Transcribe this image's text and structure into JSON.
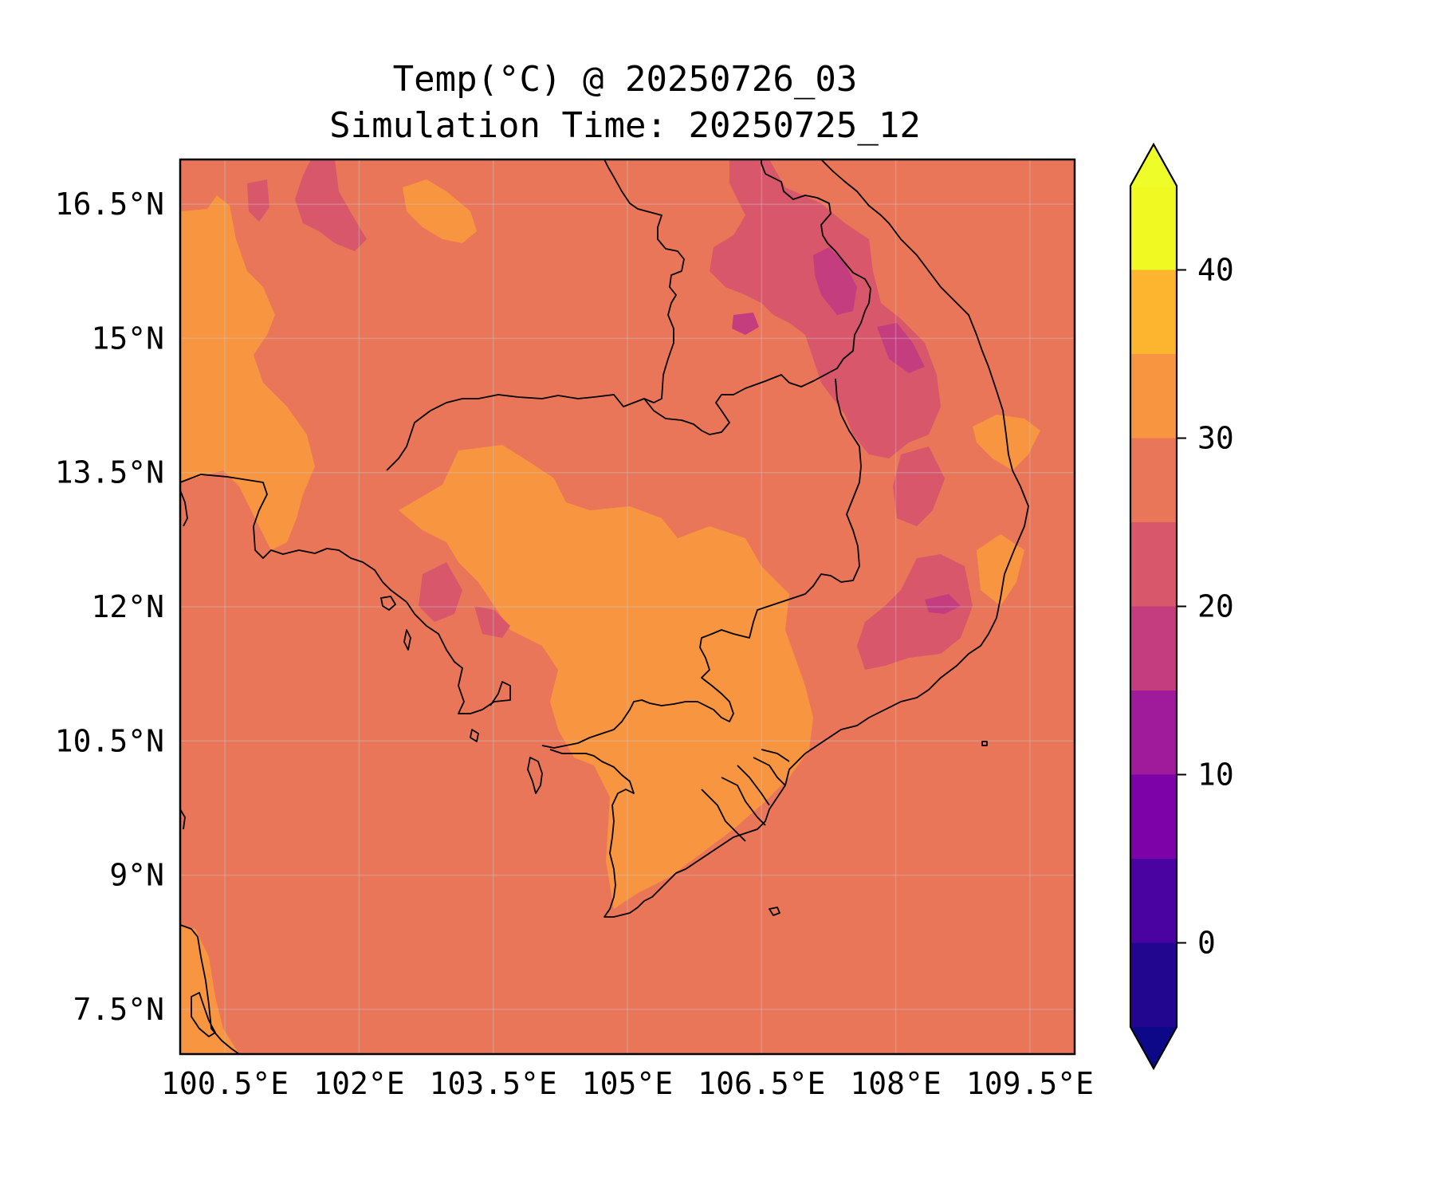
{
  "title": {
    "line1": "Temp(°C) @ 20250726_03",
    "line2": "Simulation Time: 20250725_12"
  },
  "map": {
    "lon_range": [
      100.0,
      110.0
    ],
    "lat_range": [
      7.0,
      17.0
    ],
    "x_ticks": [
      {
        "value": 100.5,
        "label": "100.5°E"
      },
      {
        "value": 102.0,
        "label": "102°E"
      },
      {
        "value": 103.5,
        "label": "103.5°E"
      },
      {
        "value": 105.0,
        "label": "105°E"
      },
      {
        "value": 106.5,
        "label": "106.5°E"
      },
      {
        "value": 108.0,
        "label": "108°E"
      },
      {
        "value": 109.5,
        "label": "109.5°E"
      }
    ],
    "y_ticks": [
      {
        "value": 16.5,
        "label": "16.5°N"
      },
      {
        "value": 15.0,
        "label": "15°N"
      },
      {
        "value": 13.5,
        "label": "13.5°N"
      },
      {
        "value": 12.0,
        "label": "12°N"
      },
      {
        "value": 10.5,
        "label": "10.5°N"
      },
      {
        "value": 9.0,
        "label": "9°N"
      },
      {
        "value": 7.5,
        "label": "7.5°N"
      }
    ],
    "gridlines": true,
    "background_color": "#ea7659",
    "coastline_color": "#000000"
  },
  "colorbar": {
    "levels": [
      -5,
      0,
      5,
      10,
      15,
      20,
      25,
      30,
      35,
      40,
      45
    ],
    "colors": [
      "#220690",
      "#4a02a0",
      "#7d03a8",
      "#a01a9c",
      "#c43e7f",
      "#d8576b",
      "#ea7659",
      "#f89540",
      "#fdb42f",
      "#f0f921"
    ],
    "under_color": "#0d0887",
    "over_color": "#eefc29",
    "ticks": [
      {
        "value": 0,
        "label": "0"
      },
      {
        "value": 10,
        "label": "10"
      },
      {
        "value": 20,
        "label": "20"
      },
      {
        "value": 30,
        "label": "30"
      },
      {
        "value": 40,
        "label": "40"
      }
    ]
  }
}
